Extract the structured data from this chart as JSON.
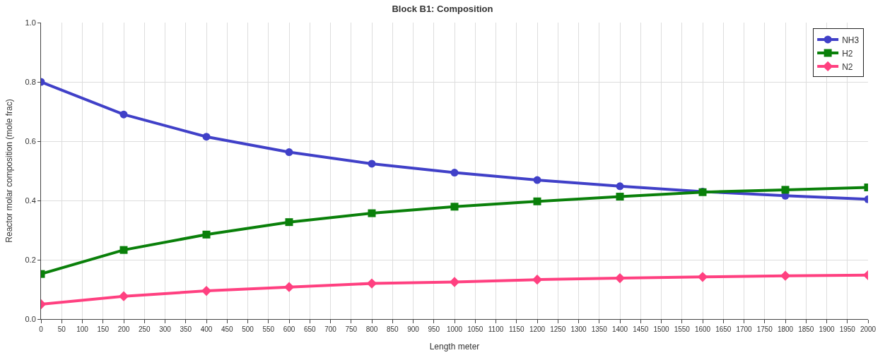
{
  "chart_data": {
    "type": "line",
    "title": "Block B1: Composition",
    "xlabel": "Length meter",
    "ylabel": "Reactor molar composition (mole frac)",
    "x": [
      0,
      200,
      400,
      600,
      800,
      1000,
      1200,
      1400,
      1600,
      1800,
      2000
    ],
    "series": [
      {
        "name": "NH3",
        "color": "#4040c8",
        "marker": "circle",
        "values": [
          0.8,
          0.69,
          0.615,
          0.563,
          0.524,
          0.494,
          0.469,
          0.448,
          0.43,
          0.416,
          0.404
        ]
      },
      {
        "name": "H2",
        "color": "#0a800a",
        "marker": "square",
        "values": [
          0.152,
          0.233,
          0.285,
          0.327,
          0.357,
          0.379,
          0.397,
          0.413,
          0.428,
          0.436,
          0.444
        ]
      },
      {
        "name": "N2",
        "color": "#ff4080",
        "marker": "diamond",
        "values": [
          0.05,
          0.077,
          0.095,
          0.108,
          0.12,
          0.125,
          0.133,
          0.138,
          0.142,
          0.146,
          0.148
        ]
      }
    ],
    "xlim": [
      0,
      2000
    ],
    "xticks": [
      0,
      50,
      100,
      150,
      200,
      250,
      300,
      350,
      400,
      450,
      500,
      550,
      600,
      650,
      700,
      750,
      800,
      850,
      900,
      950,
      1000,
      1050,
      1100,
      1150,
      1200,
      1250,
      1300,
      1350,
      1400,
      1450,
      1500,
      1550,
      1600,
      1650,
      1700,
      1750,
      1800,
      1850,
      1900,
      1950,
      2000
    ],
    "ylim": [
      0,
      1.0
    ],
    "yticks": [
      {
        "value": 0,
        "label": "0.0"
      },
      {
        "value": 0.2,
        "label": "0.2"
      },
      {
        "value": 0.4,
        "label": "0.4"
      },
      {
        "value": 0.6,
        "label": "0.6"
      },
      {
        "value": 0.8,
        "label": "0.8"
      },
      {
        "value": 1.0,
        "label": "1.0"
      }
    ],
    "grid": true,
    "legend": "top right",
    "line_style": "solid"
  }
}
